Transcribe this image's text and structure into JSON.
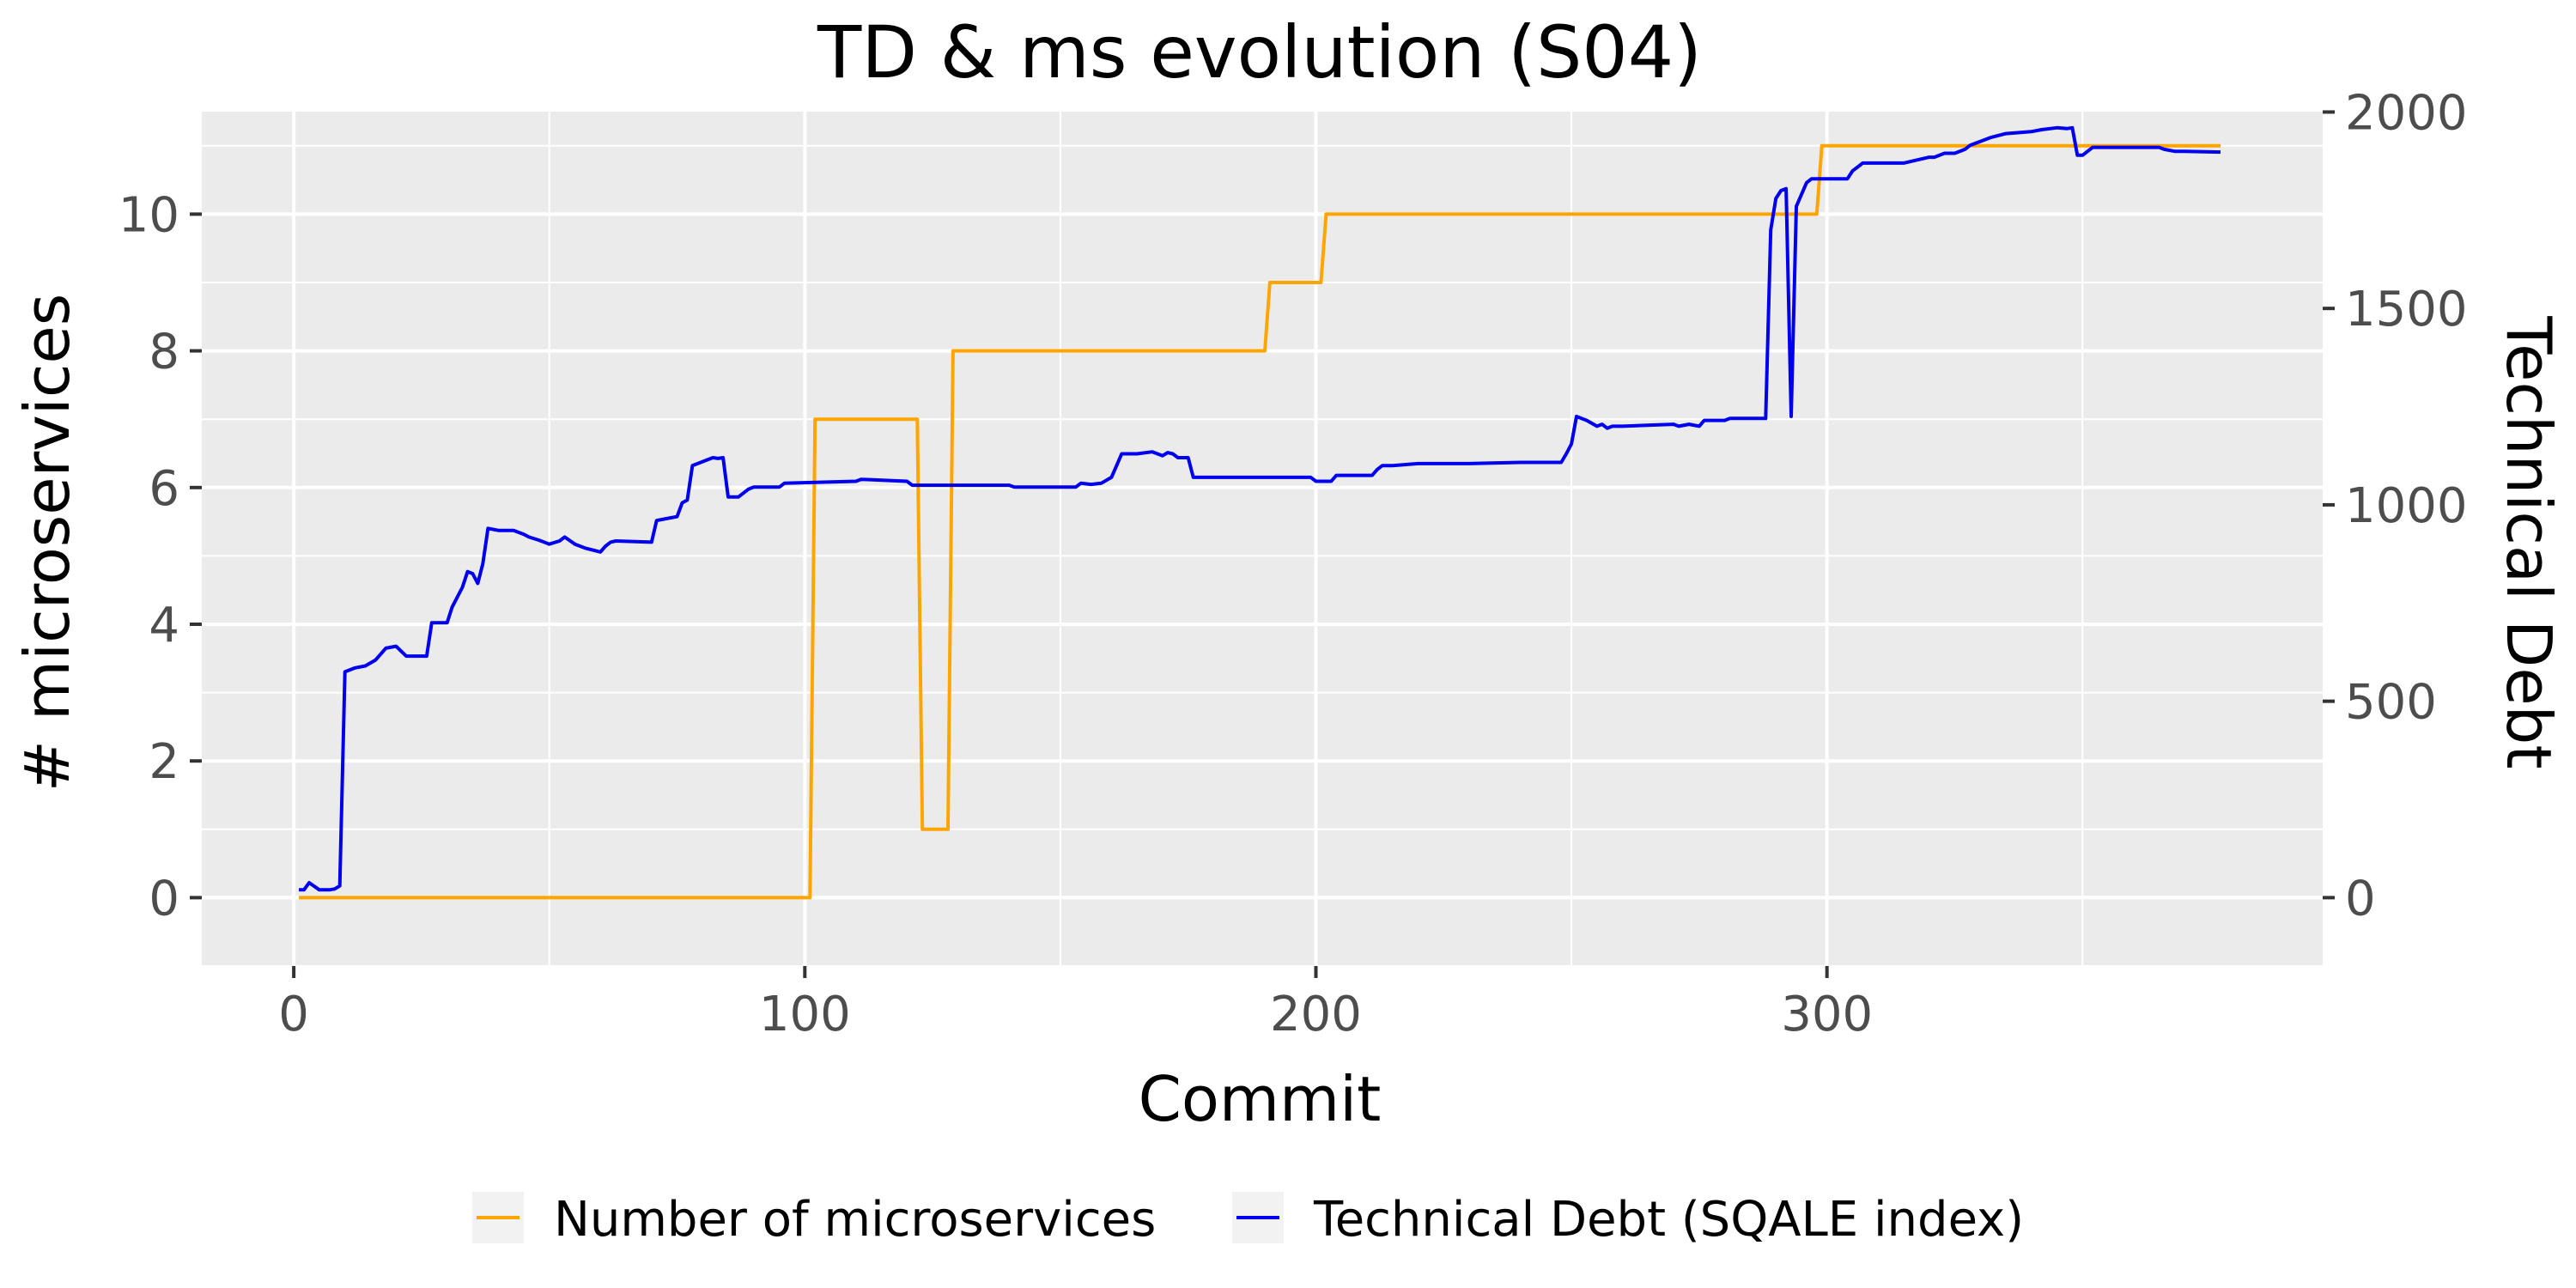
{
  "chart_data": {
    "type": "line",
    "title": "TD & ms evolution (S04)",
    "xlabel": "Commit",
    "ylabel_left": "# microservices",
    "ylabel_right": "Technical Debt",
    "xlim": [
      -18,
      397
    ],
    "ylim_left": [
      -1,
      11.5
    ],
    "ylim_right_secondary": [
      -174,
      2001
    ],
    "x_ticks": [
      0,
      100,
      200,
      300
    ],
    "x_minor_ticks": [
      50,
      150,
      250,
      350
    ],
    "y_left_ticks": [
      0,
      2,
      4,
      6,
      8,
      10
    ],
    "y_left_minor_ticks": [
      -1,
      1,
      3,
      5,
      7,
      9,
      11
    ],
    "y_right_ticks": [
      0,
      500,
      1000,
      1500,
      2000
    ],
    "grid": true,
    "legend_position": "bottom",
    "series": [
      {
        "name": "Number of microservices",
        "color": "#FFA500",
        "axis": "left",
        "x": [
          1,
          101,
          102,
          122,
          123,
          128,
          129,
          190,
          191,
          201,
          202,
          298,
          299,
          377
        ],
        "y": [
          0,
          0,
          7,
          7,
          1,
          1,
          8,
          8,
          9,
          9,
          10,
          10,
          11,
          11
        ]
      },
      {
        "name": "Technical Debt (SQALE index)",
        "color": "#0000EE",
        "axis": "right",
        "x": [
          1,
          2,
          3,
          5,
          7,
          8,
          9,
          10,
          12,
          14,
          16,
          18,
          20,
          22,
          24,
          26,
          27,
          30,
          31,
          33,
          34,
          35,
          36,
          37,
          38,
          40,
          43,
          45,
          46,
          48,
          50,
          52,
          53,
          55,
          57,
          60,
          61,
          62,
          63,
          70,
          71,
          73,
          75,
          76,
          77,
          78,
          80,
          82,
          83,
          84,
          85,
          87,
          89,
          90,
          95,
          96,
          110,
          111,
          120,
          121,
          140,
          141,
          153,
          154,
          156,
          158,
          160,
          161,
          162,
          165,
          168,
          170,
          171,
          172,
          173,
          175,
          176,
          177,
          178,
          199,
          200,
          201,
          203,
          204,
          206,
          211,
          212,
          213,
          215,
          220,
          230,
          240,
          247,
          248,
          249,
          250,
          251,
          253,
          255,
          256,
          257,
          258,
          260,
          270,
          271,
          273,
          275,
          276,
          278,
          280,
          281,
          284,
          288,
          289,
          290,
          291,
          292,
          293,
          294,
          296,
          297,
          300,
          304,
          305,
          306,
          307,
          315,
          320,
          321,
          323,
          325,
          327,
          328,
          330,
          332,
          335,
          340,
          342,
          345,
          347,
          348,
          349,
          350,
          352,
          353,
          360,
          365,
          366,
          368,
          370,
          377
        ],
        "y": [
          20,
          20,
          38,
          20,
          20,
          22,
          30,
          575,
          585,
          590,
          605,
          635,
          640,
          615,
          615,
          615,
          700,
          700,
          740,
          790,
          830,
          825,
          800,
          850,
          940,
          935,
          935,
          925,
          918,
          910,
          900,
          908,
          918,
          900,
          890,
          880,
          895,
          905,
          908,
          905,
          960,
          965,
          970,
          1005,
          1012,
          1100,
          1110,
          1120,
          1118,
          1120,
          1020,
          1020,
          1040,
          1045,
          1045,
          1055,
          1060,
          1065,
          1060,
          1050,
          1050,
          1045,
          1045,
          1055,
          1052,
          1055,
          1070,
          1100,
          1130,
          1130,
          1135,
          1125,
          1133,
          1130,
          1120,
          1120,
          1070,
          1070,
          1070,
          1070,
          1060,
          1060,
          1060,
          1075,
          1075,
          1075,
          1090,
          1100,
          1100,
          1105,
          1105,
          1108,
          1108,
          1108,
          1130,
          1155,
          1225,
          1215,
          1200,
          1205,
          1195,
          1200,
          1200,
          1205,
          1200,
          1205,
          1200,
          1215,
          1215,
          1215,
          1220,
          1220,
          1220,
          1700,
          1780,
          1800,
          1805,
          1225,
          1760,
          1820,
          1830,
          1830,
          1830,
          1850,
          1860,
          1870,
          1870,
          1885,
          1885,
          1895,
          1895,
          1905,
          1915,
          1925,
          1935,
          1945,
          1950,
          1955,
          1960,
          1958,
          1960,
          1890,
          1890,
          1910,
          1910,
          1910,
          1910,
          1905,
          1900,
          1900,
          1898
        ]
      }
    ]
  }
}
